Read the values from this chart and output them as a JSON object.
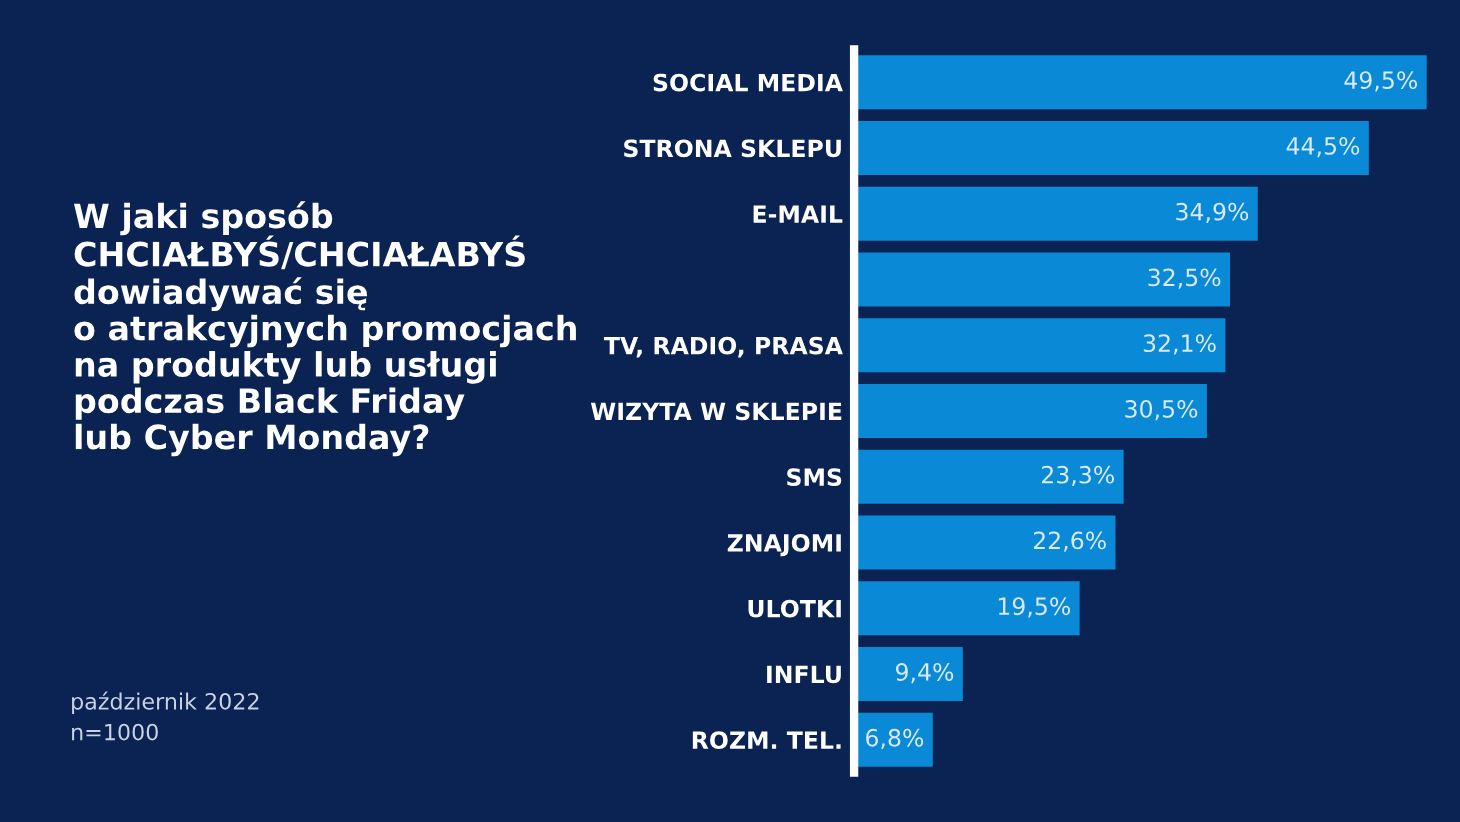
{
  "chart_data": {
    "type": "bar",
    "orientation": "horizontal",
    "title": "W jaki sposób\nCHCIAŁBYŚ/CHCIAŁABYŚ\ndowiadywać się\no atrakcyjnych promocjach\nna produkty lub usługi\npodczas Black Friday\nlub Cyber Monday?",
    "categories": [
      "SOCIAL MEDIA",
      "STRONA SKLEPU",
      "E-MAIL",
      null,
      "TV, RADIO, PRASA",
      "WIZYTA W SKLEPIE",
      "SMS",
      "ZNAJOMI",
      "ULOTKI",
      "INFLU",
      "ROZM. TEL."
    ],
    "values": [
      49.5,
      44.5,
      34.9,
      32.5,
      32.1,
      30.5,
      23.3,
      22.6,
      19.5,
      9.4,
      6.8
    ],
    "value_labels": [
      "49,5%",
      "44,5%",
      "34,9%",
      "32,5%",
      "32,1%",
      "30,5%",
      "23,3%",
      "22,6%",
      "19,5%",
      "9,4%",
      "6,8%"
    ],
    "color": "#0a8ad6",
    "annotations": [
      "październik 2022",
      "n=1000"
    ],
    "tick_labels": "y"
  }
}
